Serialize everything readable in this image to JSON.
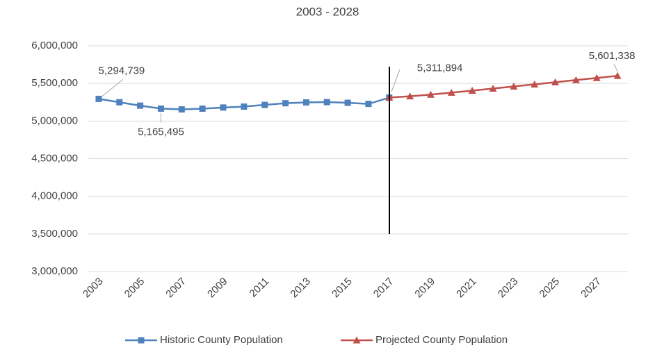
{
  "chart_data": {
    "type": "line",
    "title": "2003 - 2028",
    "categories": [
      "2003",
      null,
      "2005",
      null,
      "2007",
      null,
      "2009",
      null,
      "2011",
      null,
      "2013",
      null,
      "2015",
      null,
      "2017",
      null,
      "2019",
      null,
      "2021",
      null,
      "2023",
      null,
      "2025",
      null,
      "2027",
      null
    ],
    "series": [
      {
        "name": "Historic County Population",
        "color": "#4f81bd",
        "marker": "square",
        "values": [
          5294739,
          5250000,
          5205000,
          5165495,
          5155000,
          5165000,
          5180000,
          5192000,
          5215000,
          5237000,
          5248000,
          5252000,
          5243000,
          5228000,
          5311894,
          null,
          null,
          null,
          null,
          null,
          null,
          null,
          null,
          null,
          null,
          null
        ],
        "value_labels": [
          "5,294,739",
          null,
          null,
          "5,165,495",
          null,
          null,
          null,
          null,
          null,
          null,
          null,
          null,
          null,
          null,
          null,
          null,
          null,
          null,
          null,
          null,
          null,
          null,
          null,
          null,
          null,
          null
        ]
      },
      {
        "name": "Projected County Population",
        "color": "#c0504d",
        "marker": "triangle",
        "values": [
          null,
          null,
          null,
          null,
          null,
          null,
          null,
          null,
          null,
          null,
          null,
          null,
          null,
          null,
          5311894,
          5330000,
          5352000,
          5378000,
          5405000,
          5432000,
          5460000,
          5488000,
          5517000,
          5545000,
          5573000,
          5601338
        ],
        "value_labels": [
          null,
          null,
          null,
          null,
          null,
          null,
          null,
          null,
          null,
          null,
          null,
          null,
          null,
          null,
          "5,311,894",
          null,
          null,
          null,
          null,
          null,
          null,
          null,
          null,
          null,
          null,
          "5,601,338"
        ]
      }
    ],
    "ylim": [
      3000000,
      6000000
    ],
    "yticks": [
      {
        "value": 3000000,
        "label": "3,000,000"
      },
      {
        "value": 3500000,
        "label": "3,500,000"
      },
      {
        "value": 4000000,
        "label": "4,000,000"
      },
      {
        "value": 4500000,
        "label": "4,500,000"
      },
      {
        "value": 5000000,
        "label": "5,000,000"
      },
      {
        "value": 5500000,
        "label": "5,500,000"
      },
      {
        "value": 6000000,
        "label": "6,000,000"
      }
    ],
    "grid": true,
    "legend": "bottom"
  }
}
